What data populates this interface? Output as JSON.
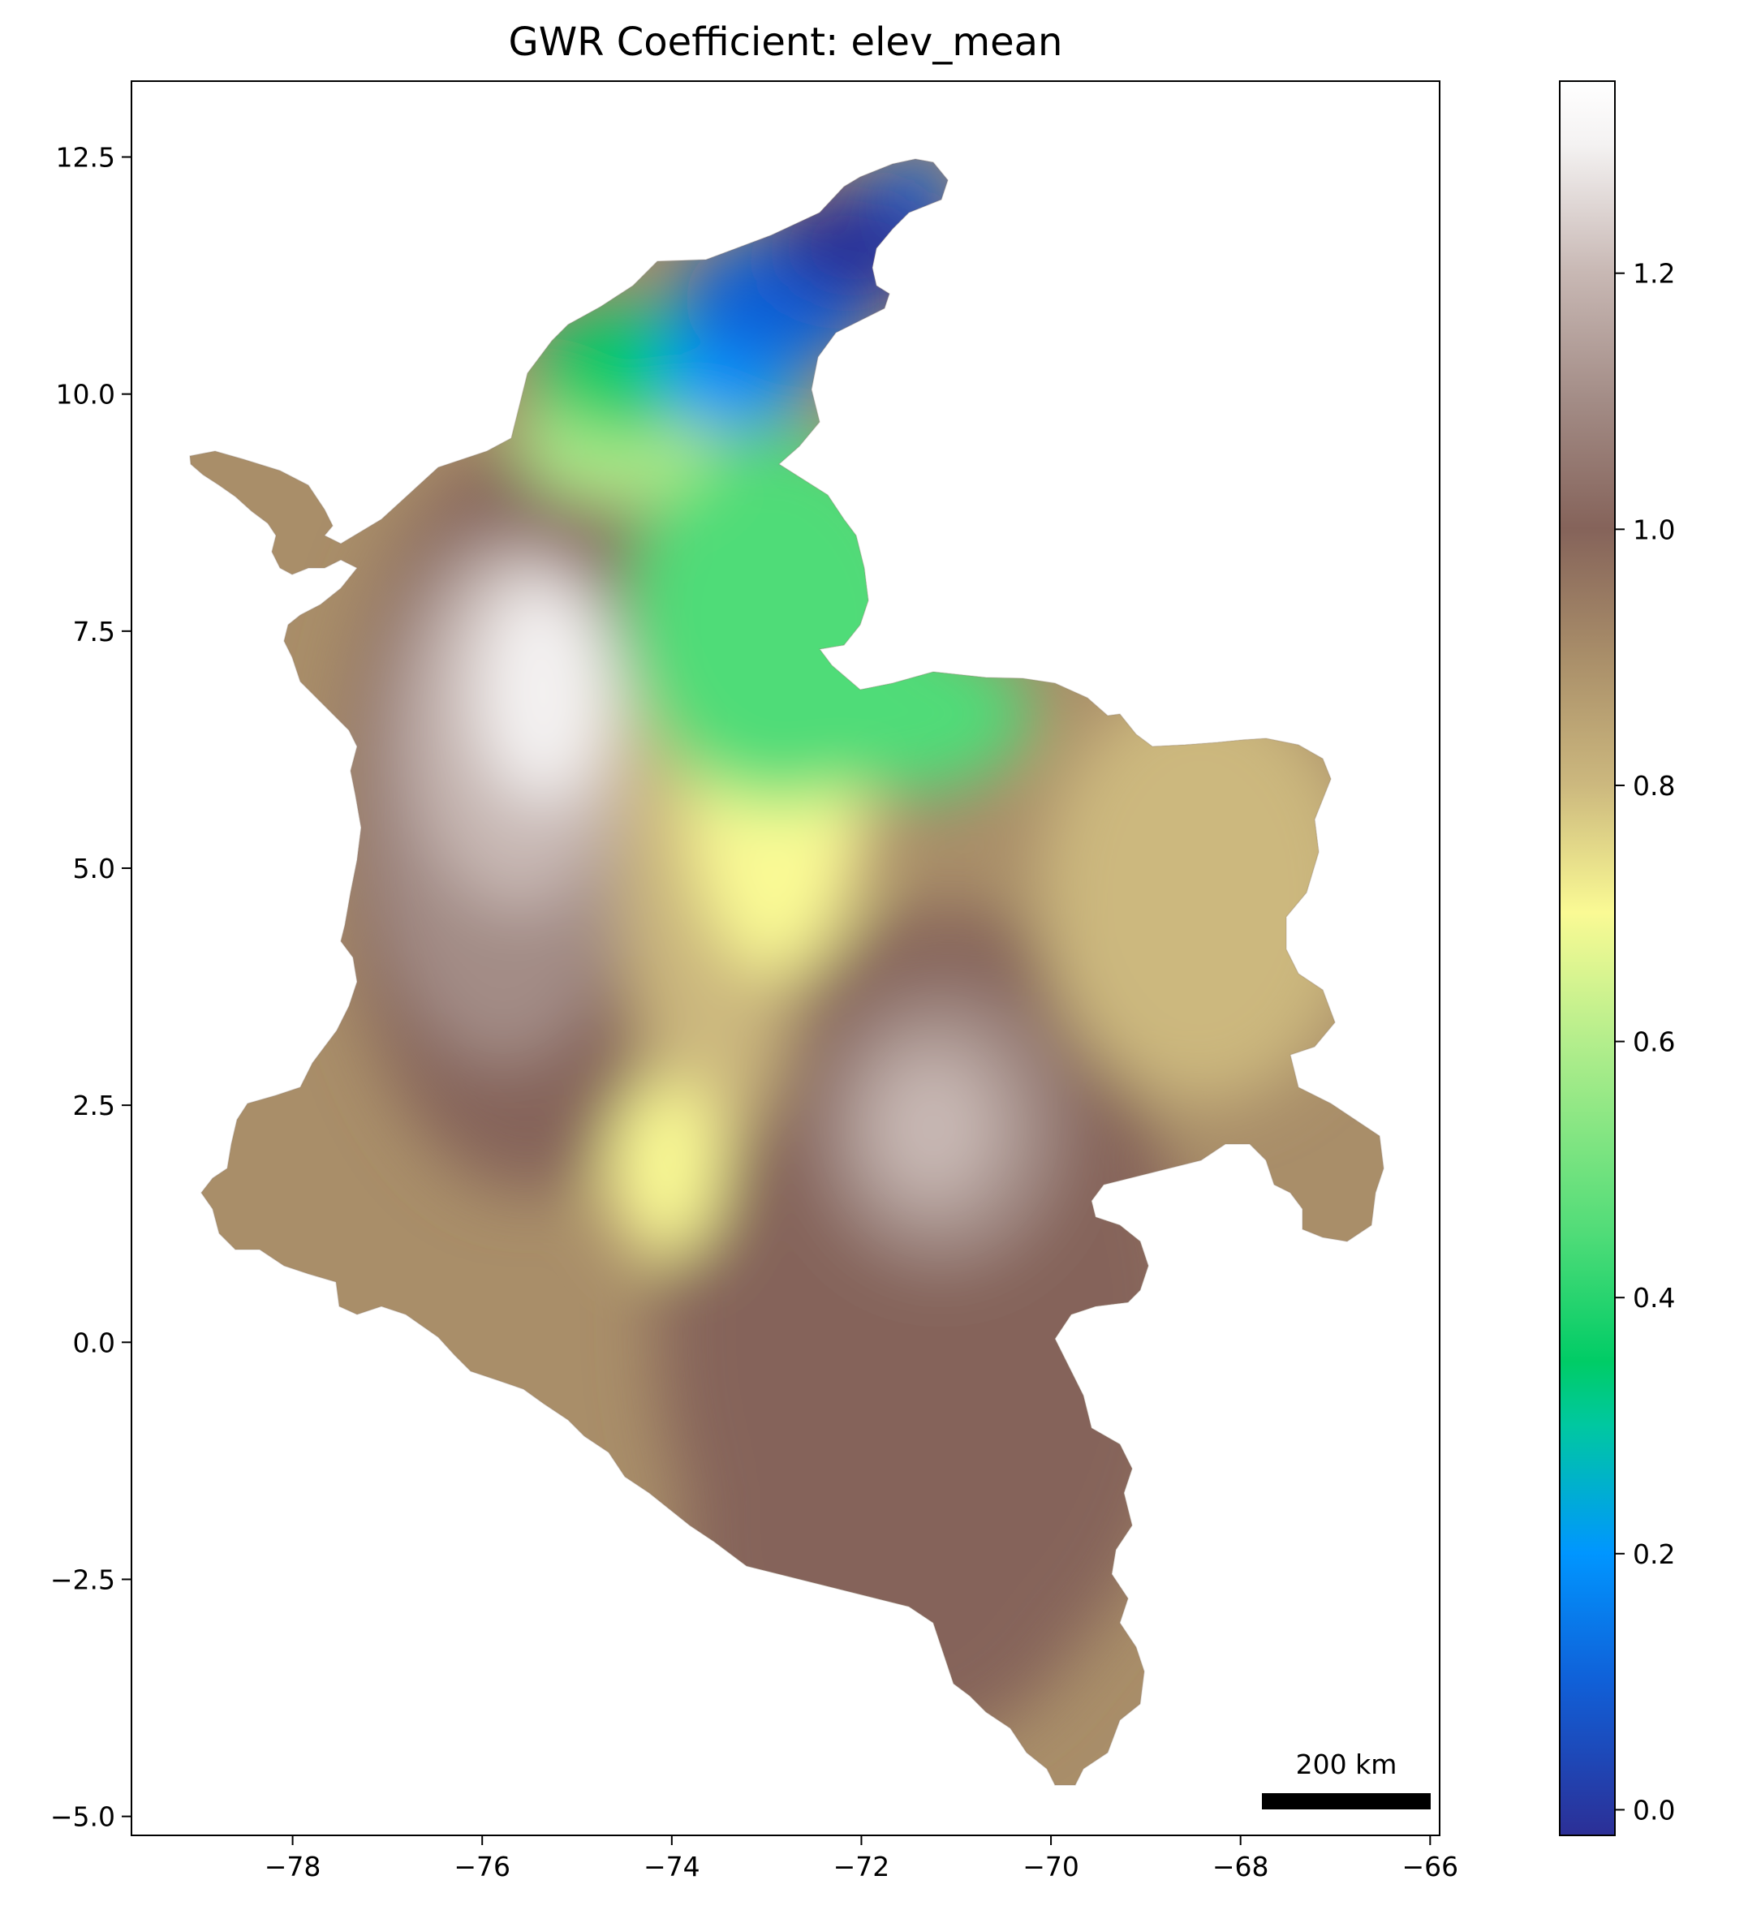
{
  "title": "GWR Coefficient: elev_mean",
  "map": {
    "x_ticks": [
      {
        "value": -78,
        "label": "−78"
      },
      {
        "value": -76,
        "label": "−76"
      },
      {
        "value": -74,
        "label": "−74"
      },
      {
        "value": -72,
        "label": "−72"
      },
      {
        "value": -70,
        "label": "−70"
      },
      {
        "value": -68,
        "label": "−68"
      },
      {
        "value": -66,
        "label": "−66"
      }
    ],
    "y_ticks": [
      {
        "value": 12.5,
        "label": "12.5"
      },
      {
        "value": 10.0,
        "label": "10.0"
      },
      {
        "value": 7.5,
        "label": "7.5"
      },
      {
        "value": 5.0,
        "label": "5.0"
      },
      {
        "value": 2.5,
        "label": "2.5"
      },
      {
        "value": 0.0,
        "label": "0.0"
      },
      {
        "value": -2.5,
        "label": "−2.5"
      },
      {
        "value": -5.0,
        "label": "−5.0"
      }
    ],
    "xlim": [
      -79.7,
      -65.9
    ],
    "ylim": [
      -5.2,
      13.3
    ],
    "scale_bar": {
      "label": "200 km"
    }
  },
  "colorbar": {
    "colormap": "terrain",
    "range": [
      -0.02,
      1.35
    ],
    "ticks": [
      {
        "value": 0.0,
        "label": "0.0"
      },
      {
        "value": 0.2,
        "label": "0.2"
      },
      {
        "value": 0.4,
        "label": "0.4"
      },
      {
        "value": 0.6,
        "label": "0.6"
      },
      {
        "value": 0.8,
        "label": "0.8"
      },
      {
        "value": 1.0,
        "label": "1.0"
      },
      {
        "value": 1.2,
        "label": "1.2"
      }
    ]
  },
  "colors": {
    "c000": "#2c2f96",
    "c010": "#1060d8",
    "c020": "#0096ff",
    "c030": "#00c8a0",
    "c035": "#00cc66",
    "c045": "#50dc78",
    "c060": "#b4ee8c",
    "c070": "#fafa94",
    "c080": "#ccb87e",
    "c090": "#a98e69",
    "c100": "#85635a",
    "c110": "#a38c86",
    "c120": "#c8b8b4",
    "c130": "#f4f2f2",
    "c135": "#ffffff"
  }
}
